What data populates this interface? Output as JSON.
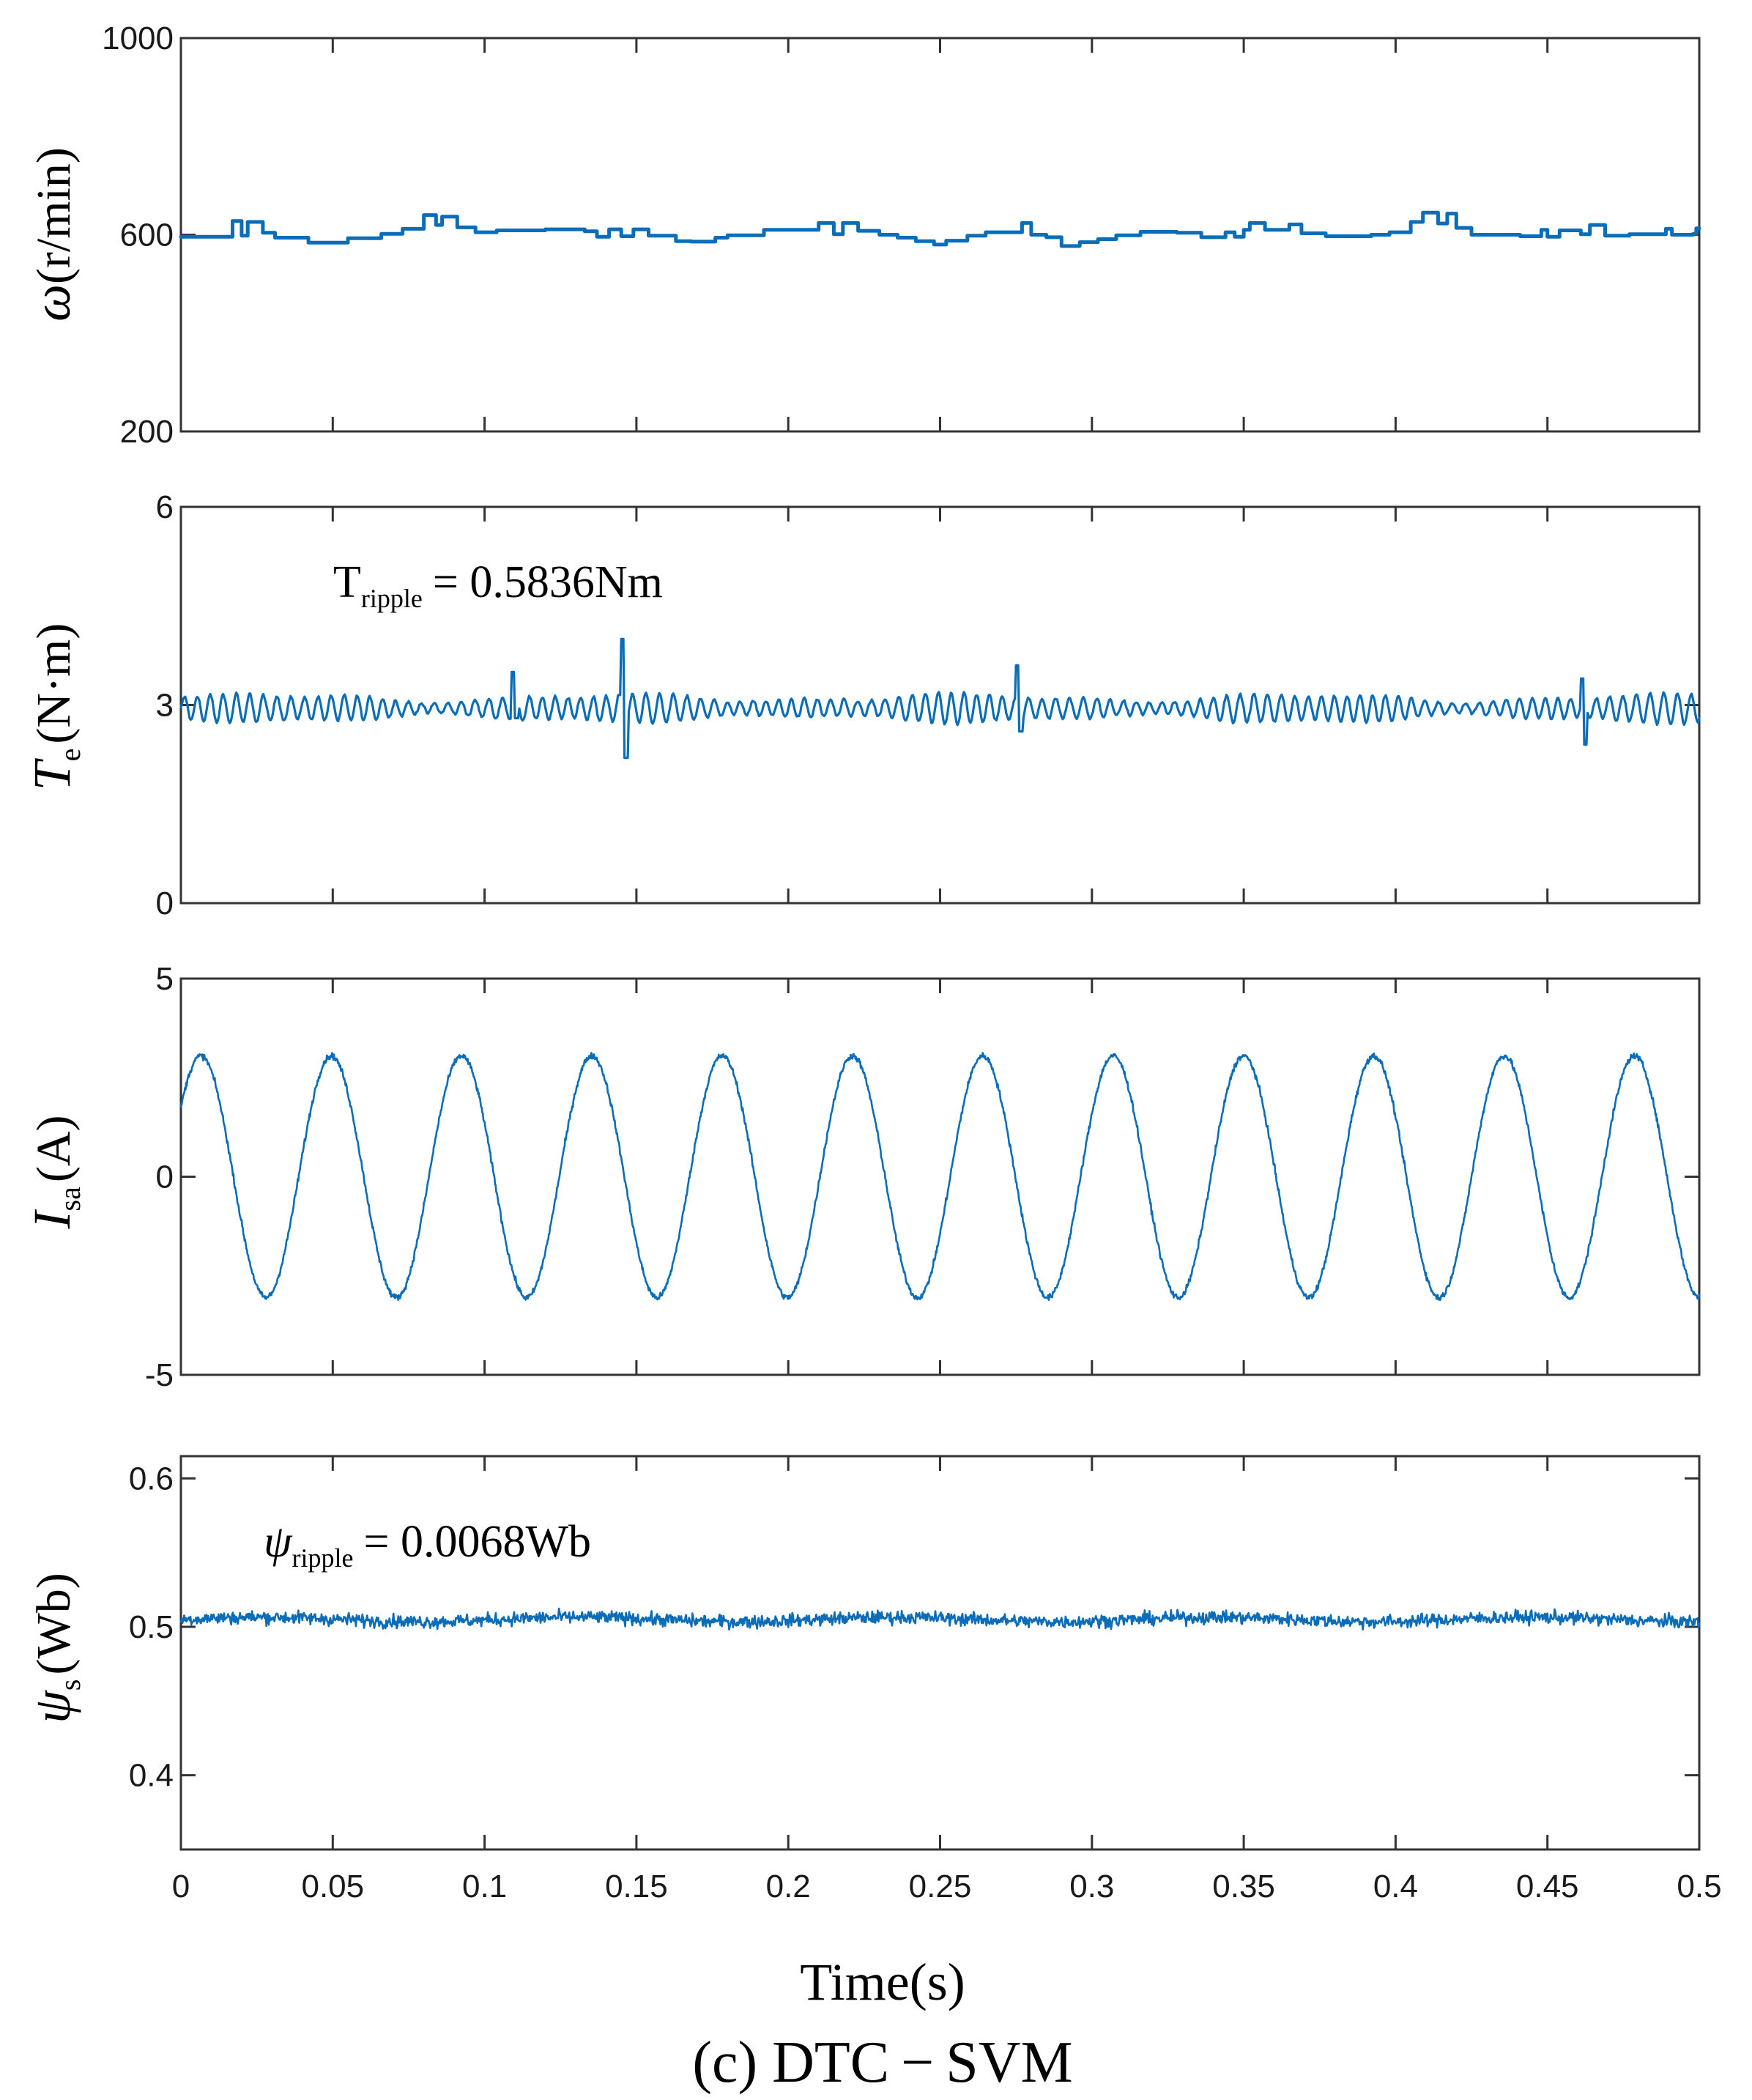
{
  "figure": {
    "caption": "(c) DTC − SVM",
    "xlabel": "Time(s)",
    "x_ticks": [
      "0",
      "0.05",
      "0.1",
      "0.15",
      "0.2",
      "0.25",
      "0.3",
      "0.35",
      "0.4",
      "0.45",
      "0.5"
    ]
  },
  "colors": {
    "series": "#0b6db7",
    "axes": "#333333"
  },
  "chart_data": [
    {
      "type": "line",
      "name": "speed",
      "ylabel_symbol": "ω",
      "ylabel_unit": "(r/min)",
      "ylim": [
        200,
        1000
      ],
      "y_ticks": [
        "1000",
        "600",
        "200"
      ],
      "y_tick_values": [
        1000,
        600,
        200
      ],
      "xlim": [
        0,
        0.5
      ],
      "series": [
        {
          "name": "ω",
          "mean": 600,
          "signal": "stepwise speed around 600 r/min, steps between about 575 and 645"
        }
      ],
      "step_values": [
        [
          0.0,
          596
        ],
        [
          0.017,
          628
        ],
        [
          0.02,
          598
        ],
        [
          0.022,
          626
        ],
        [
          0.027,
          604
        ],
        [
          0.031,
          594
        ],
        [
          0.042,
          584
        ],
        [
          0.055,
          593
        ],
        [
          0.066,
          602
        ],
        [
          0.073,
          612
        ],
        [
          0.08,
          640
        ],
        [
          0.084,
          620
        ],
        [
          0.086,
          637
        ],
        [
          0.091,
          615
        ],
        [
          0.097,
          605
        ],
        [
          0.104,
          609
        ],
        [
          0.12,
          611
        ],
        [
          0.133,
          607
        ],
        [
          0.137,
          596
        ],
        [
          0.141,
          611
        ],
        [
          0.145,
          597
        ],
        [
          0.149,
          611
        ],
        [
          0.154,
          598
        ],
        [
          0.163,
          587
        ],
        [
          0.168,
          586
        ],
        [
          0.176,
          594
        ],
        [
          0.18,
          599
        ],
        [
          0.192,
          610
        ],
        [
          0.21,
          624
        ],
        [
          0.215,
          601
        ],
        [
          0.218,
          624
        ],
        [
          0.223,
          608
        ],
        [
          0.23,
          600
        ],
        [
          0.236,
          594
        ],
        [
          0.242,
          587
        ],
        [
          0.248,
          580
        ],
        [
          0.252,
          588
        ],
        [
          0.259,
          598
        ],
        [
          0.265,
          605
        ],
        [
          0.277,
          624
        ],
        [
          0.28,
          600
        ],
        [
          0.285,
          595
        ],
        [
          0.29,
          577
        ],
        [
          0.296,
          585
        ],
        [
          0.302,
          591
        ],
        [
          0.308,
          599
        ],
        [
          0.316,
          606
        ],
        [
          0.328,
          604
        ],
        [
          0.336,
          595
        ],
        [
          0.344,
          605
        ],
        [
          0.347,
          596
        ],
        [
          0.35,
          610
        ],
        [
          0.352,
          624
        ],
        [
          0.357,
          610
        ],
        [
          0.361,
          610
        ],
        [
          0.365,
          621
        ],
        [
          0.369,
          603
        ],
        [
          0.377,
          597
        ],
        [
          0.392,
          600
        ],
        [
          0.398,
          605
        ],
        [
          0.405,
          626
        ],
        [
          0.409,
          645
        ],
        [
          0.414,
          623
        ],
        [
          0.417,
          643
        ],
        [
          0.42,
          614
        ],
        [
          0.425,
          600
        ],
        [
          0.441,
          597
        ],
        [
          0.448,
          610
        ],
        [
          0.45,
          596
        ],
        [
          0.454,
          609
        ],
        [
          0.461,
          601
        ],
        [
          0.464,
          620
        ],
        [
          0.469,
          598
        ],
        [
          0.477,
          601
        ],
        [
          0.489,
          612
        ],
        [
          0.491,
          600
        ],
        [
          0.498,
          602
        ],
        [
          0.499,
          613
        ],
        [
          0.5,
          613
        ]
      ]
    },
    {
      "type": "line",
      "name": "torque",
      "ylabel_symbol": "T",
      "ylabel_sub": "e",
      "ylabel_unit": "(N·m)",
      "ylim": [
        0,
        6
      ],
      "y_ticks": [
        "6",
        "3",
        "0"
      ],
      "y_tick_values": [
        6,
        3,
        0
      ],
      "xlim": [
        0,
        0.5
      ],
      "annotation": {
        "symbol": "T",
        "sub": "ripple",
        "value": "= 0.5836Nm"
      },
      "series": [
        {
          "name": "Te",
          "mean": 2.95,
          "ripple": 0.5836,
          "spikes": [
            [
              0.146,
              4.0,
              2.2
            ],
            [
              0.11,
              3.5,
              2.8
            ],
            [
              0.276,
              3.6,
              2.6
            ],
            [
              0.462,
              3.4,
              2.4
            ]
          ]
        }
      ]
    },
    {
      "type": "line",
      "name": "current",
      "ylabel_symbol": "I",
      "ylabel_sub": "sa",
      "ylabel_unit": "(A)",
      "ylim": [
        -5,
        5
      ],
      "y_ticks": [
        "5",
        "0",
        "-5"
      ],
      "y_tick_values": [
        5,
        0,
        -5
      ],
      "xlim": [
        0,
        0.5
      ],
      "series": [
        {
          "name": "Isa",
          "amplitude": 3.05,
          "frequency_hz": 23.3,
          "phase_deg": 35,
          "signal": "sinusoid with PWM noise"
        }
      ]
    },
    {
      "type": "line",
      "name": "flux",
      "ylabel_symbol": "ψ",
      "ylabel_sub": "s",
      "ylabel_unit": "(Wb)",
      "ylim": [
        0.35,
        0.615
      ],
      "y_ticks": [
        "0.6",
        "0.5",
        "0.4"
      ],
      "y_tick_values": [
        0.6,
        0.5,
        0.4
      ],
      "xlim": [
        0,
        0.5
      ],
      "annotation": {
        "symbol": "ψ",
        "sub": "ripple",
        "value": "= 0.0068Wb"
      },
      "series": [
        {
          "name": "ψs",
          "mean": 0.505,
          "ripple": 0.0068
        }
      ]
    }
  ]
}
